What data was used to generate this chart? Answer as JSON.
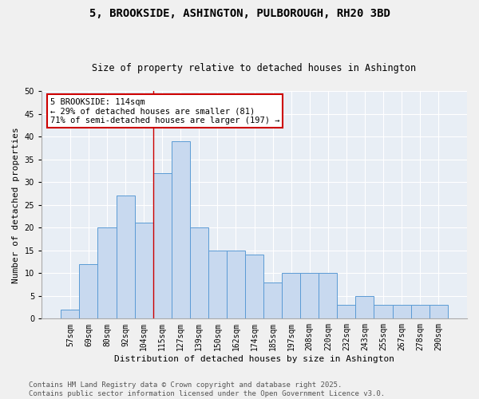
{
  "title": "5, BROOKSIDE, ASHINGTON, PULBOROUGH, RH20 3BD",
  "subtitle": "Size of property relative to detached houses in Ashington",
  "xlabel": "Distribution of detached houses by size in Ashington",
  "ylabel": "Number of detached properties",
  "categories": [
    "57sqm",
    "69sqm",
    "80sqm",
    "92sqm",
    "104sqm",
    "115sqm",
    "127sqm",
    "139sqm",
    "150sqm",
    "162sqm",
    "174sqm",
    "185sqm",
    "197sqm",
    "208sqm",
    "220sqm",
    "232sqm",
    "243sqm",
    "255sqm",
    "267sqm",
    "278sqm",
    "290sqm"
  ],
  "values": [
    2,
    12,
    20,
    27,
    21,
    32,
    39,
    20,
    15,
    15,
    14,
    8,
    10,
    10,
    10,
    3,
    5,
    3,
    3,
    3,
    3
  ],
  "bar_color": "#c8d9ef",
  "bar_edge_color": "#5b9bd5",
  "vline_x": 4.5,
  "vline_color": "#cc0000",
  "annotation_text": "5 BROOKSIDE: 114sqm\n← 29% of detached houses are smaller (81)\n71% of semi-detached houses are larger (197) →",
  "annotation_box_color": "#ffffff",
  "annotation_box_edge": "#cc0000",
  "ylim": [
    0,
    50
  ],
  "yticks": [
    0,
    5,
    10,
    15,
    20,
    25,
    30,
    35,
    40,
    45,
    50
  ],
  "background_color": "#e8eef5",
  "fig_background": "#f0f0f0",
  "footer": "Contains HM Land Registry data © Crown copyright and database right 2025.\nContains public sector information licensed under the Open Government Licence v3.0.",
  "title_fontsize": 10,
  "subtitle_fontsize": 8.5,
  "xlabel_fontsize": 8,
  "ylabel_fontsize": 8,
  "tick_fontsize": 7,
  "footer_fontsize": 6.5,
  "ann_fontsize": 7.5
}
